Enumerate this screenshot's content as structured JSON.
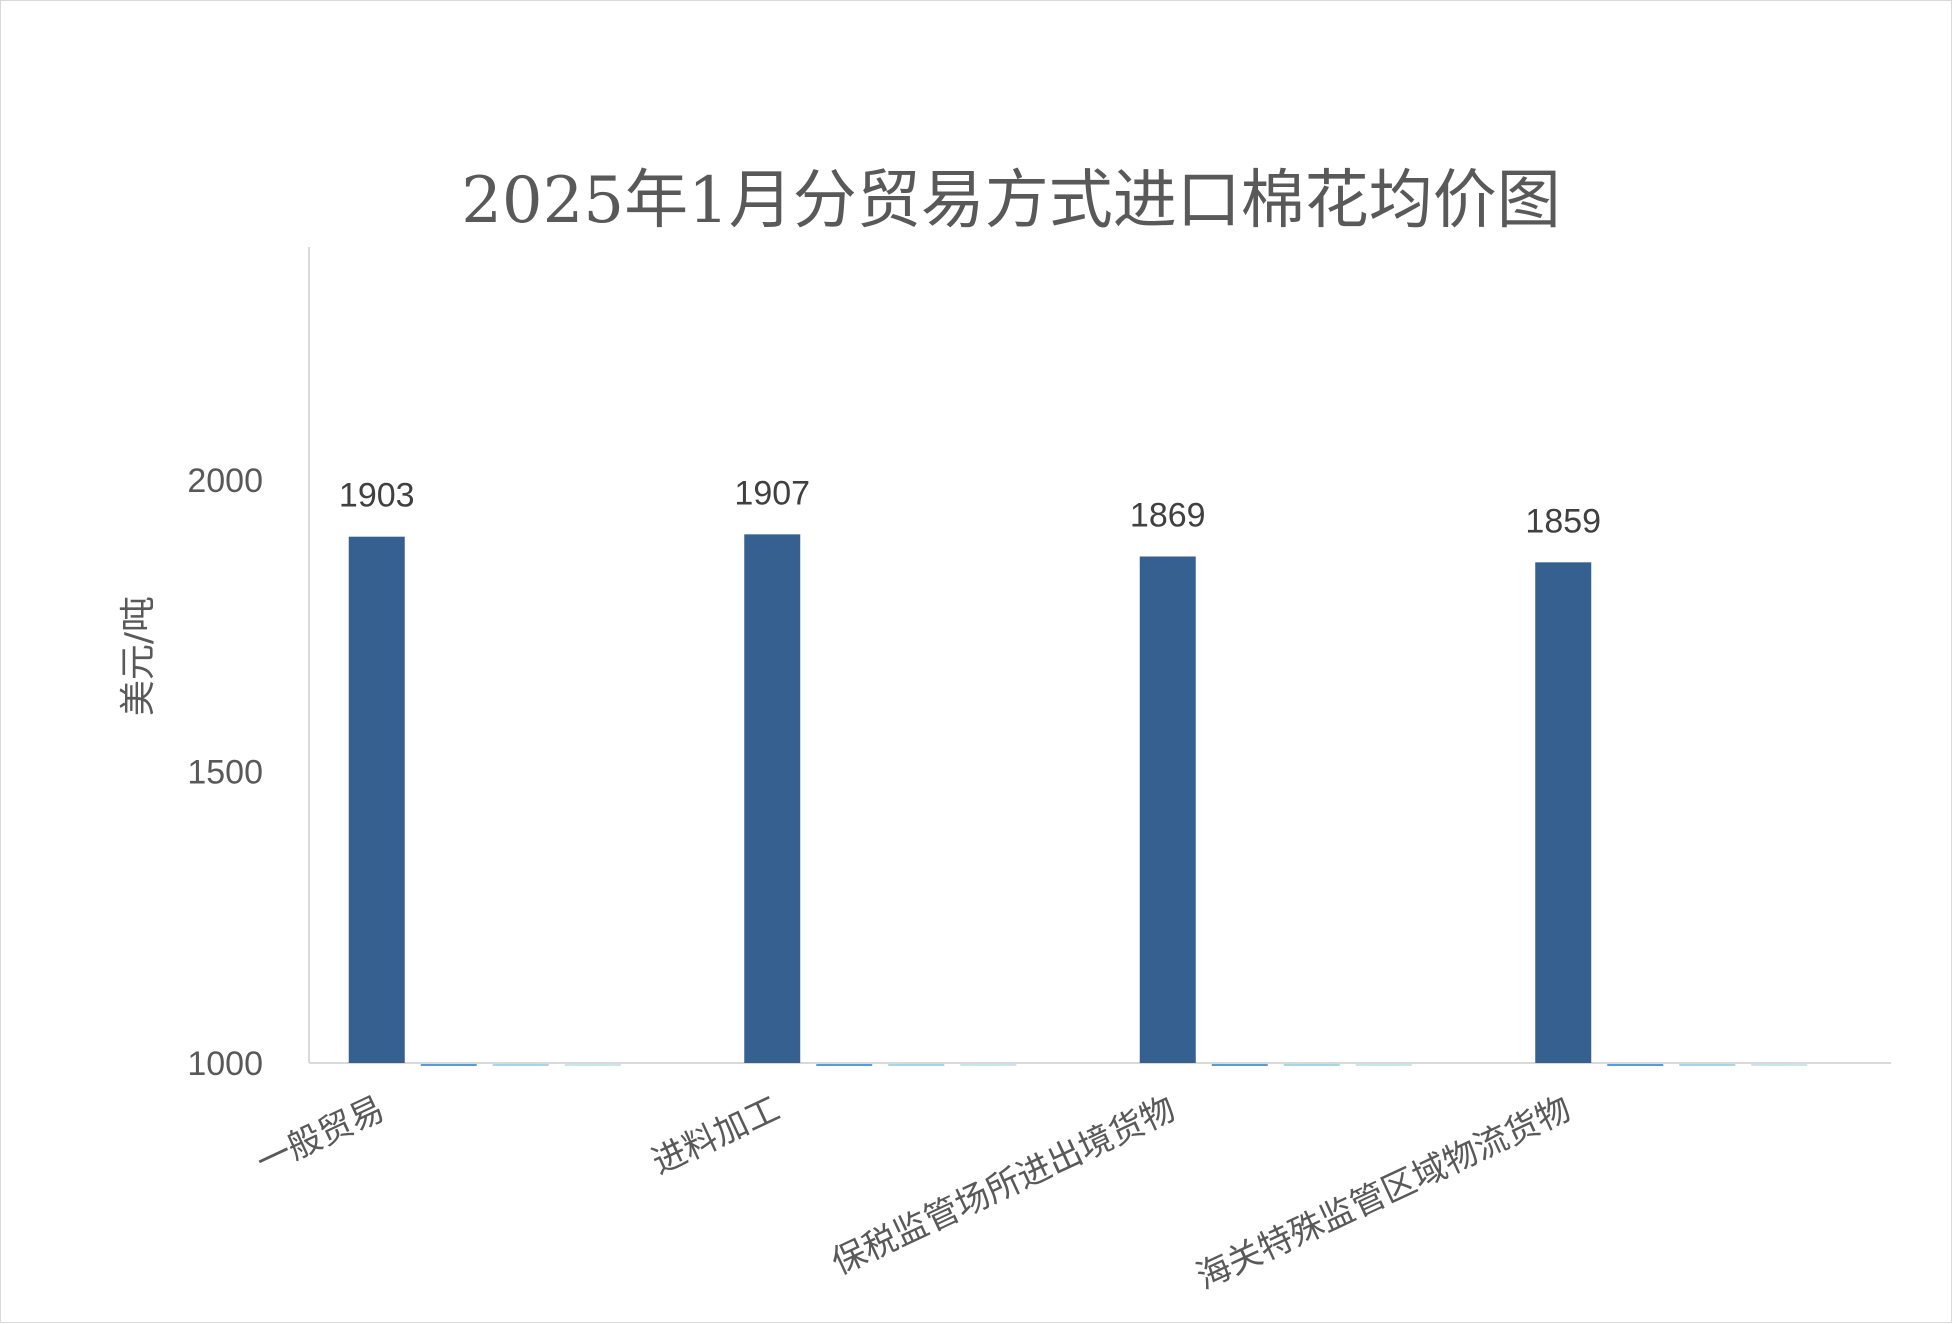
{
  "chart_data": {
    "type": "bar",
    "title": "2025年1月分贸易方式进口棉花均价图",
    "ylabel": "美元/吨",
    "xlabel": "",
    "ylim": [
      1000,
      2400
    ],
    "yticks": [
      1000,
      1500,
      2000
    ],
    "grid": false,
    "legend": "none",
    "categories": [
      "一般贸易",
      "进料加工",
      "保税监管场所进出境货物",
      "海关特殊监管区域物流货物"
    ],
    "series": [
      {
        "values": [
          1903,
          1907,
          1869,
          1859
        ],
        "color": "#35608f",
        "data_labels": true
      },
      {
        "values": [
          0,
          0,
          0,
          0
        ],
        "color": "#5b9bd5"
      },
      {
        "values": [
          0,
          0,
          0,
          0
        ],
        "color": "#a5d7e6"
      },
      {
        "values": [
          0,
          0,
          0,
          0
        ],
        "color": "#c9e6ee"
      }
    ]
  },
  "colors": {
    "axis": "#d9d9d9",
    "text": "#595959"
  }
}
